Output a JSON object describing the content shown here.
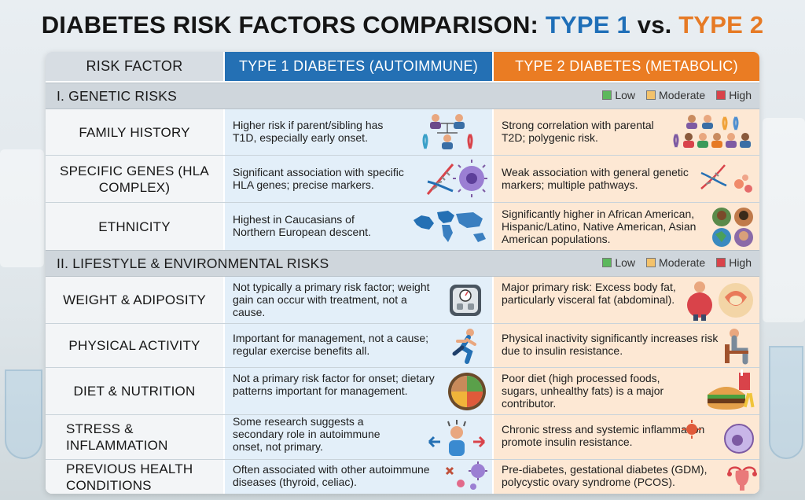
{
  "title": {
    "main": "DIABETES RISK FACTORS COMPARISON: ",
    "type1": "TYPE 1",
    "vs": " vs. ",
    "type2": "TYPE 2"
  },
  "headers": {
    "factor": "RISK FACTOR",
    "type1": "TYPE 1 DIABETES (AUTOIMMUNE)",
    "type2": "TYPE 2 DIABETES (METABOLIC)"
  },
  "legend": {
    "low": "Low",
    "moderate": "Moderate",
    "high": "High",
    "colors": {
      "low": "#5cb85c",
      "moderate": "#f3c26b",
      "high": "#d9434a"
    }
  },
  "sections": [
    {
      "title": "I. GENETIC RISKS",
      "rows": [
        {
          "factor": "FAMILY HISTORY",
          "type1": "Higher risk if parent/sibling has T1D, especially early onset.",
          "type1_icon": "family-tree-ribbon-icon",
          "type2": "Strong correlation with parental T2D; polygenic risk.",
          "type2_icon": "family-group-ribbon-icon"
        },
        {
          "factor": "SPECIFIC GENES (HLA COMPLEX)",
          "type1": "Significant association with specific HLA genes; precise markers.",
          "type1_icon": "dna-cell-icon",
          "type2": "Weak association with general genetic markers; multiple pathways.",
          "type2_icon": "dna-cells-icon"
        },
        {
          "factor": "ETHNICITY",
          "type1": "Highest in Caucasians of Northern European descent.",
          "type1_icon": "world-map-icon",
          "type2": "Significantly higher in African American, Hispanic/Latino, Native American, Asian American populations.",
          "type2_icon": "diverse-people-globe-icon"
        }
      ]
    },
    {
      "title": "II. LIFESTYLE & ENVIRONMENTAL RISKS",
      "rows": [
        {
          "factor": "WEIGHT & ADIPOSITY",
          "type1": "Not typically a primary risk factor; weight gain can occur with treatment, not a cause.",
          "type1_icon": "scale-icon",
          "type2": "Major primary risk: Excess body fat, particularly visceral fat (abdominal).",
          "type2_icon": "overweight-person-icon"
        },
        {
          "factor": "PHYSICAL ACTIVITY",
          "type1": "Important for management, not a cause; regular exercise benefits all.",
          "type1_icon": "runner-icon",
          "type2": "Physical inactivity significantly increases risk due to insulin resistance.",
          "type2_icon": "sitting-person-icon"
        },
        {
          "factor": "DIET & NUTRITION",
          "type1": "Not a primary risk factor for onset; dietary patterns important for management.",
          "type1_icon": "healthy-plate-icon",
          "type2": "Poor diet (high processed foods, sugars, unhealthy fats) is a major contributor.",
          "type2_icon": "fast-food-icon"
        },
        {
          "factor": "STRESS & INFLAMMATION",
          "type1": "Some research suggests a secondary role in autoimmune onset, not primary.",
          "type1_icon": "stressed-person-icon",
          "type2": "Chronic stress and systemic inflammation promote insulin resistance.",
          "type2_icon": "inflammation-cell-icon"
        },
        {
          "factor": "PREVIOUS HEALTH CONDITIONS",
          "type1": "Often associated with other autoimmune diseases (thyroid, celiac).",
          "type1_icon": "virus-cells-icon",
          "type2": "Pre-diabetes, gestational diabetes (GDM), polycystic ovary syndrome (PCOS).",
          "type2_icon": "uterus-icon"
        }
      ]
    }
  ]
}
